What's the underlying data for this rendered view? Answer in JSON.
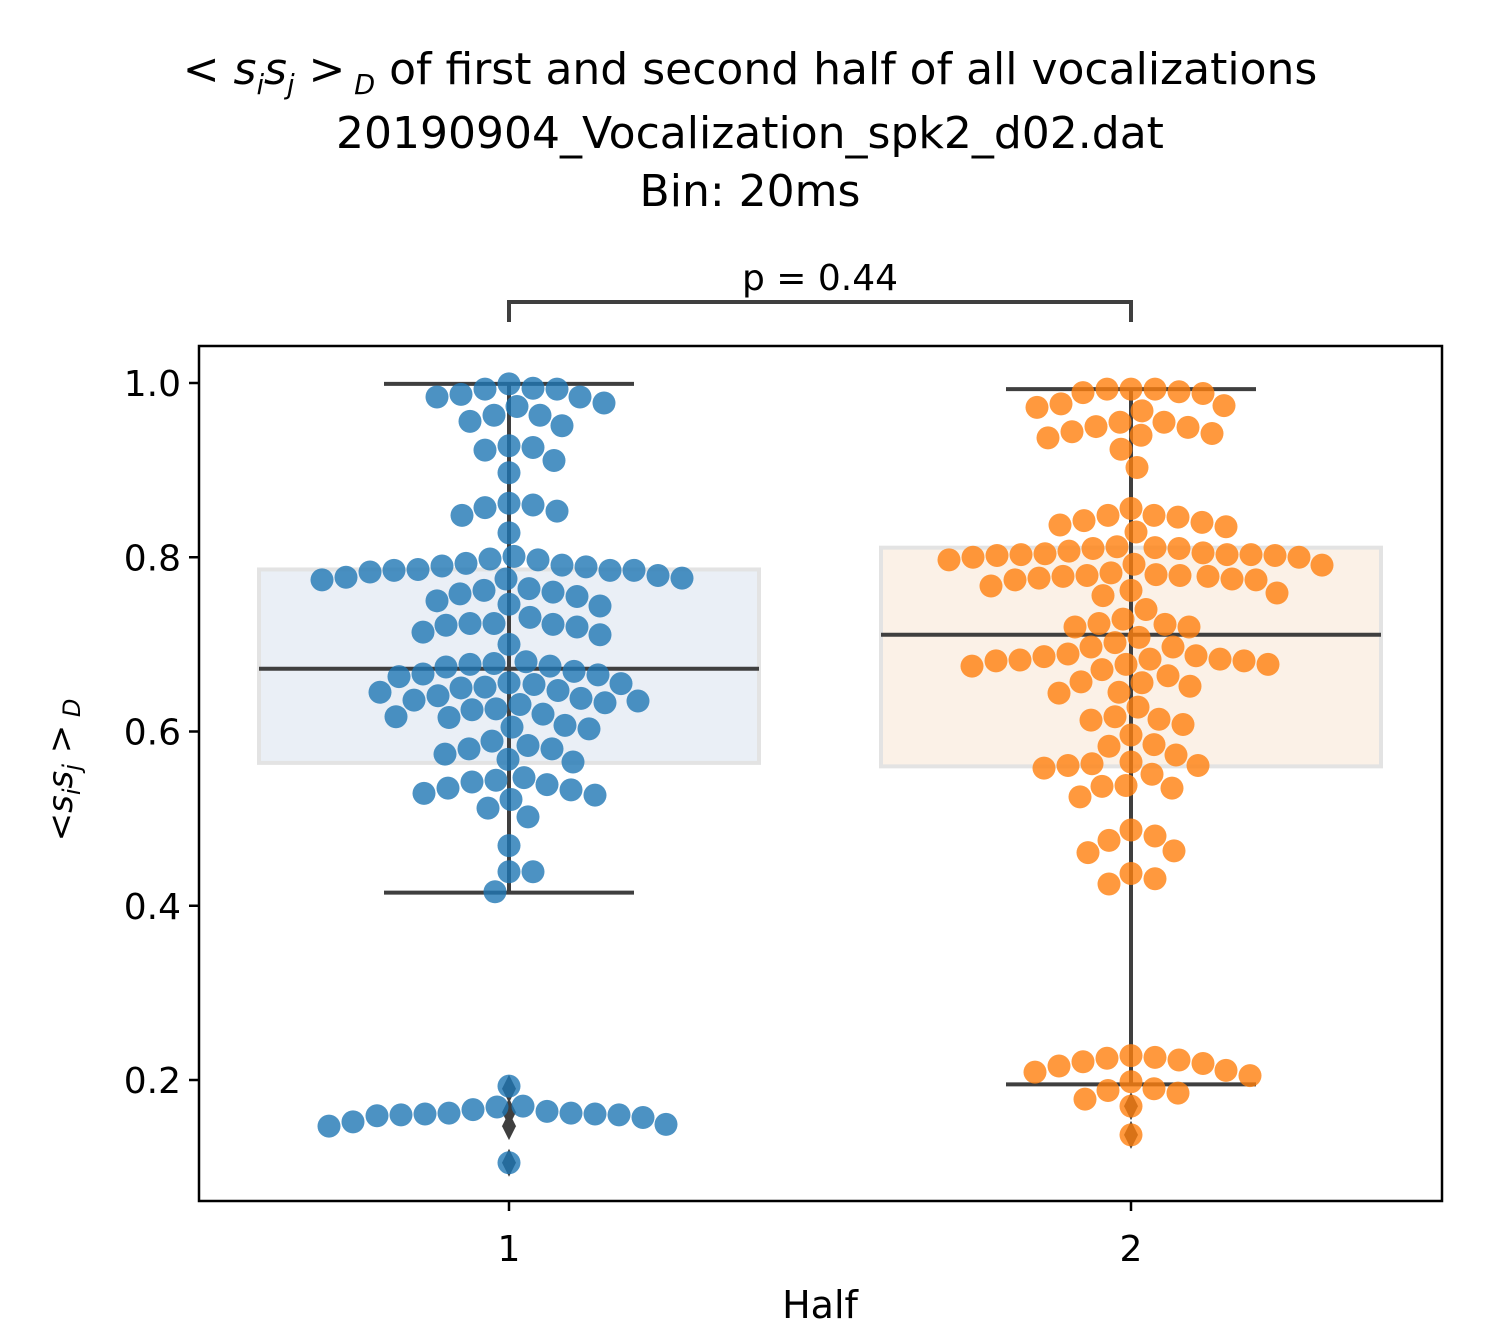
{
  "chart_data": {
    "type": "box",
    "title_line1_math": "< s",
    "title_line1_rest": "of first and second half of all vocalizations",
    "title_line2": "20190904_Vocalization_spk2_d02.dat",
    "title_line3": "Bin: 20ms",
    "xlabel": "Half",
    "ylabel_math": "<sisj>D",
    "categories": [
      "1",
      "2"
    ],
    "ylim": [
      0.07,
      1.045
    ],
    "yticks": [
      "0.2",
      "0.4",
      "0.6",
      "0.8",
      "1.0"
    ],
    "ytick_values": [
      0.2,
      0.4,
      0.6,
      0.8,
      1.0
    ],
    "annotation": "p = 0.44",
    "colors": {
      "half1": "#1f77b4",
      "half2": "#ff7f0e",
      "box1": "#eaeff6",
      "box2": "#fbf1e7",
      "line": "#3f3f3f"
    },
    "boxes": [
      {
        "name": "1",
        "q1": 0.564,
        "median": 0.672,
        "q3": 0.786,
        "whisker_low": 0.415,
        "whisker_high": 0.999,
        "outliers": [
          0.105,
          0.147,
          0.163,
          0.19
        ]
      },
      {
        "name": "2",
        "q1": 0.56,
        "median": 0.711,
        "q3": 0.811,
        "whisker_low": 0.195,
        "whisker_high": 0.993,
        "outliers": [
          0.137,
          0.17
        ]
      }
    ],
    "series": [
      {
        "name": "1",
        "values": [
          0.994,
          0.993,
          0.999,
          0.993,
          0.987,
          0.984,
          0.984,
          0.977,
          0.973,
          0.963,
          0.963,
          0.956,
          0.951,
          0.928,
          0.926,
          0.923,
          0.911,
          0.897,
          0.862,
          0.86,
          0.857,
          0.853,
          0.848,
          0.828,
          0.801,
          0.798,
          0.797,
          0.793,
          0.791,
          0.79,
          0.789,
          0.786,
          0.785,
          0.785,
          0.785,
          0.783,
          0.779,
          0.777,
          0.776,
          0.775,
          0.774,
          0.764,
          0.762,
          0.76,
          0.758,
          0.755,
          0.75,
          0.746,
          0.744,
          0.731,
          0.724,
          0.724,
          0.723,
          0.722,
          0.72,
          0.714,
          0.711,
          0.7,
          0.68,
          0.678,
          0.677,
          0.675,
          0.674,
          0.669,
          0.666,
          0.665,
          0.663,
          0.656,
          0.655,
          0.654,
          0.651,
          0.65,
          0.647,
          0.645,
          0.641,
          0.638,
          0.636,
          0.635,
          0.633,
          0.631,
          0.626,
          0.625,
          0.62,
          0.617,
          0.616,
          0.607,
          0.605,
          0.603,
          0.589,
          0.584,
          0.58,
          0.58,
          0.574,
          0.568,
          0.565,
          0.547,
          0.544,
          0.542,
          0.539,
          0.535,
          0.533,
          0.529,
          0.527,
          0.522,
          0.512,
          0.502,
          0.469,
          0.439,
          0.439,
          0.416,
          0.193,
          0.17,
          0.169,
          0.166,
          0.164,
          0.162,
          0.162,
          0.161,
          0.161,
          0.16,
          0.16,
          0.159,
          0.157,
          0.152,
          0.149,
          0.147,
          0.105
        ]
      },
      {
        "name": "2",
        "values": [
          0.993,
          0.993,
          0.993,
          0.99,
          0.989,
          0.988,
          0.976,
          0.974,
          0.972,
          0.968,
          0.955,
          0.955,
          0.95,
          0.949,
          0.944,
          0.942,
          0.94,
          0.937,
          0.924,
          0.903,
          0.856,
          0.848,
          0.848,
          0.846,
          0.842,
          0.84,
          0.837,
          0.835,
          0.829,
          0.812,
          0.811,
          0.81,
          0.81,
          0.807,
          0.805,
          0.804,
          0.803,
          0.803,
          0.803,
          0.802,
          0.802,
          0.8,
          0.8,
          0.797,
          0.792,
          0.791,
          0.782,
          0.78,
          0.779,
          0.779,
          0.778,
          0.778,
          0.776,
          0.775,
          0.774,
          0.774,
          0.767,
          0.762,
          0.759,
          0.756,
          0.74,
          0.729,
          0.724,
          0.723,
          0.72,
          0.72,
          0.708,
          0.702,
          0.697,
          0.697,
          0.689,
          0.687,
          0.686,
          0.683,
          0.683,
          0.682,
          0.681,
          0.681,
          0.677,
          0.677,
          0.675,
          0.671,
          0.664,
          0.657,
          0.656,
          0.652,
          0.645,
          0.644,
          0.628,
          0.617,
          0.614,
          0.613,
          0.608,
          0.596,
          0.585,
          0.583,
          0.573,
          0.565,
          0.563,
          0.561,
          0.561,
          0.558,
          0.551,
          0.538,
          0.537,
          0.535,
          0.525,
          0.487,
          0.48,
          0.475,
          0.463,
          0.461,
          0.437,
          0.431,
          0.425,
          0.228,
          0.226,
          0.225,
          0.223,
          0.221,
          0.219,
          0.216,
          0.211,
          0.209,
          0.205,
          0.198,
          0.19,
          0.188,
          0.185,
          0.178,
          0.17,
          0.137
        ]
      }
    ]
  }
}
